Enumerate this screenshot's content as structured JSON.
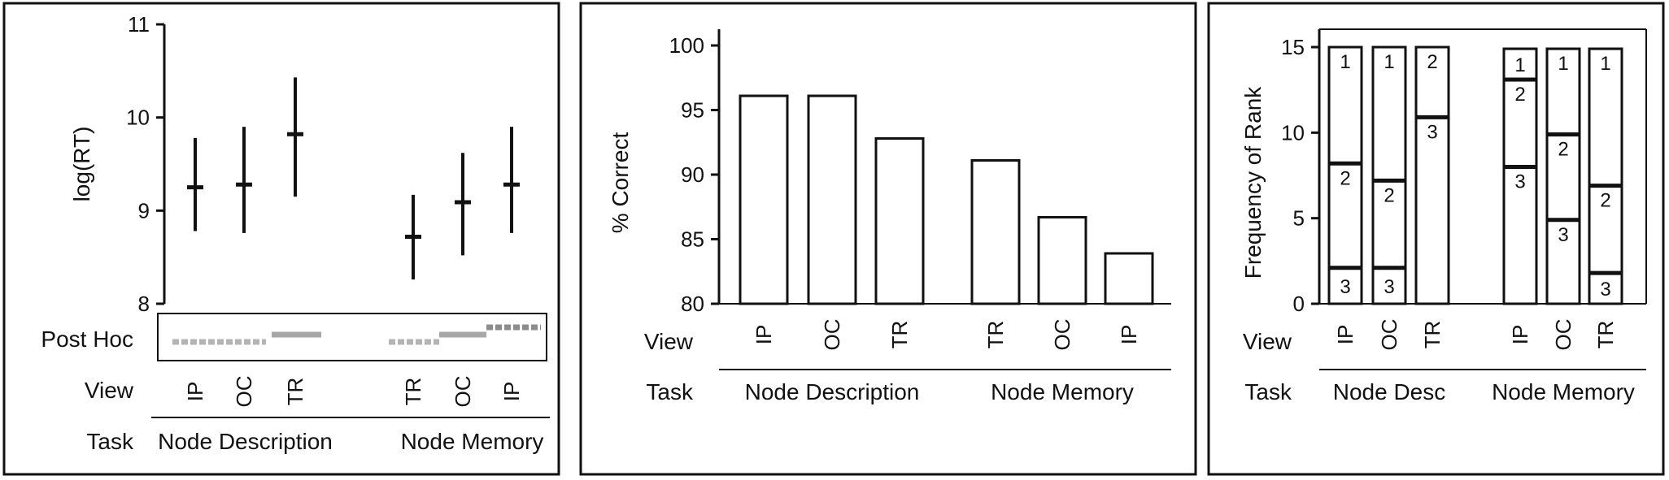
{
  "chart_data": [
    {
      "type": "scatter",
      "ylabel": "log(RT)",
      "ylim": [
        8,
        11
      ],
      "yticks": [
        8,
        9,
        10,
        11
      ],
      "row_labels": {
        "post_hoc": "Post Hoc",
        "view": "View",
        "task": "Task"
      },
      "groups": [
        {
          "task": "Node Description",
          "points": [
            {
              "view": "IP",
              "mean": 9.25,
              "low": 8.78,
              "high": 9.78
            },
            {
              "view": "OC",
              "mean": 9.28,
              "low": 8.76,
              "high": 9.9
            },
            {
              "view": "TR",
              "mean": 9.82,
              "low": 9.15,
              "high": 10.43
            }
          ]
        },
        {
          "task": "Node Memory",
          "points": [
            {
              "view": "TR",
              "mean": 8.72,
              "low": 8.26,
              "high": 9.17
            },
            {
              "view": "OC",
              "mean": 9.09,
              "low": 8.52,
              "high": 9.62
            },
            {
              "view": "IP",
              "mean": 9.28,
              "low": 8.76,
              "high": 9.9
            }
          ]
        }
      ],
      "post_hoc_colors": [
        "#b4b4b4",
        "#a7a7a7",
        "#8c8c8c"
      ]
    },
    {
      "type": "bar",
      "ylabel": "% Correct",
      "ylim": [
        80,
        100
      ],
      "yticks": [
        80,
        85,
        90,
        95,
        100
      ],
      "row_labels": {
        "view": "View",
        "task": "Task"
      },
      "groups": [
        {
          "task": "Node Description",
          "bars": [
            {
              "view": "IP",
              "value": 96.1
            },
            {
              "view": "OC",
              "value": 96.1
            },
            {
              "view": "TR",
              "value": 92.8
            }
          ]
        },
        {
          "task": "Node Memory",
          "bars": [
            {
              "view": "TR",
              "value": 91.1
            },
            {
              "view": "OC",
              "value": 86.7
            },
            {
              "view": "IP",
              "value": 83.9
            }
          ]
        }
      ]
    },
    {
      "type": "bar",
      "stacked": true,
      "ylabel": "Frequency of Rank",
      "ylim": [
        0,
        15
      ],
      "yticks": [
        0,
        5,
        10,
        15
      ],
      "row_labels": {
        "view": "View",
        "task": "Task"
      },
      "groups": [
        {
          "task": "Node Desc",
          "bars": [
            {
              "view": "IP",
              "segments": [
                {
                  "rank": "3",
                  "value": 2.1
                },
                {
                  "rank": "2",
                  "value": 6.1
                },
                {
                  "rank": "1",
                  "value": 6.8
                }
              ]
            },
            {
              "view": "OC",
              "segments": [
                {
                  "rank": "3",
                  "value": 2.1
                },
                {
                  "rank": "2",
                  "value": 5.1
                },
                {
                  "rank": "1",
                  "value": 7.8
                }
              ]
            },
            {
              "view": "TR",
              "segments": [
                {
                  "rank": "3",
                  "value": 10.9
                },
                {
                  "rank": "2",
                  "value": 4.1
                }
              ]
            }
          ]
        },
        {
          "task": "Node Memory",
          "bars": [
            {
              "view": "IP",
              "segments": [
                {
                  "rank": "3",
                  "value": 8.0
                },
                {
                  "rank": "2",
                  "value": 5.1
                },
                {
                  "rank": "1",
                  "value": 1.8
                }
              ]
            },
            {
              "view": "OC",
              "segments": [
                {
                  "rank": "3",
                  "value": 4.9
                },
                {
                  "rank": "2",
                  "value": 5.0
                },
                {
                  "rank": "1",
                  "value": 5.0
                }
              ]
            },
            {
              "view": "TR",
              "segments": [
                {
                  "rank": "3",
                  "value": 1.8
                },
                {
                  "rank": "2",
                  "value": 5.1
                },
                {
                  "rank": "1",
                  "value": 8.0
                }
              ]
            }
          ]
        }
      ]
    }
  ]
}
